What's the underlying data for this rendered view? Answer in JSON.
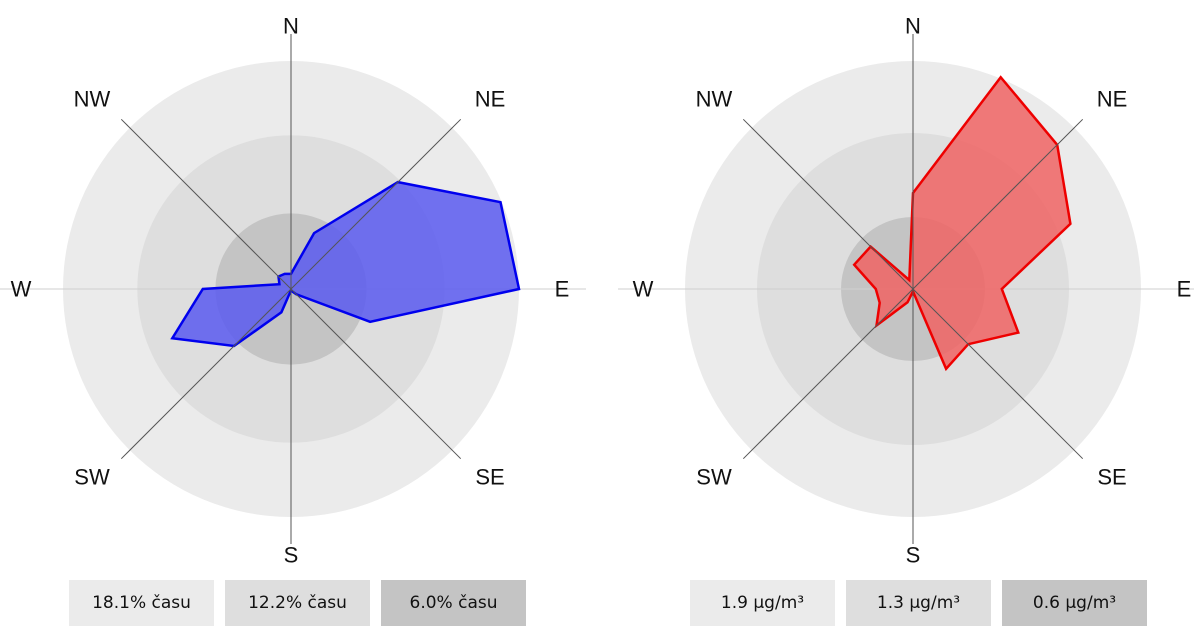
{
  "chart_data": [
    {
      "type": "radar",
      "directions": [
        "N",
        "NNE",
        "NE",
        "ENE",
        "E",
        "ESE",
        "SE",
        "SSE",
        "S",
        "SSW",
        "SW",
        "WSW",
        "W",
        "WNW",
        "NW",
        "NNW"
      ],
      "compass_labels": [
        "N",
        "NE",
        "E",
        "SE",
        "S",
        "SW",
        "W",
        "NW"
      ],
      "values": [
        1.2,
        4.8,
        12.0,
        18.0,
        18.1,
        6.8,
        0.6,
        0.2,
        0.1,
        2.0,
        6.4,
        10.2,
        7.0,
        1.0,
        1.4,
        1.3
      ],
      "rings": [
        18.1,
        12.2,
        6.0
      ],
      "legend": [
        "18.1% času",
        "12.2% času",
        "6.0% času"
      ],
      "color": "#0000ee",
      "fill": "#5a5af0"
    },
    {
      "type": "radar",
      "directions": [
        "N",
        "NNE",
        "NE",
        "ENE",
        "E",
        "ESE",
        "SE",
        "SSE",
        "S",
        "SSW",
        "SW",
        "WSW",
        "W",
        "WNW",
        "NW",
        "NNW"
      ],
      "compass_labels": [
        "N",
        "NE",
        "E",
        "SE",
        "S",
        "SW",
        "W",
        "NW"
      ],
      "values": [
        0.8,
        1.91,
        1.7,
        1.42,
        0.74,
        0.95,
        0.65,
        0.72,
        0.02,
        0.12,
        0.43,
        0.3,
        0.31,
        0.53,
        0.5,
        0.08
      ],
      "rings": [
        1.9,
        1.3,
        0.6
      ],
      "legend": [
        "1.9 µg/m³",
        "1.3 µg/m³",
        "0.6 µg/m³"
      ],
      "color": "#ee0000",
      "fill": "#f06464"
    }
  ]
}
